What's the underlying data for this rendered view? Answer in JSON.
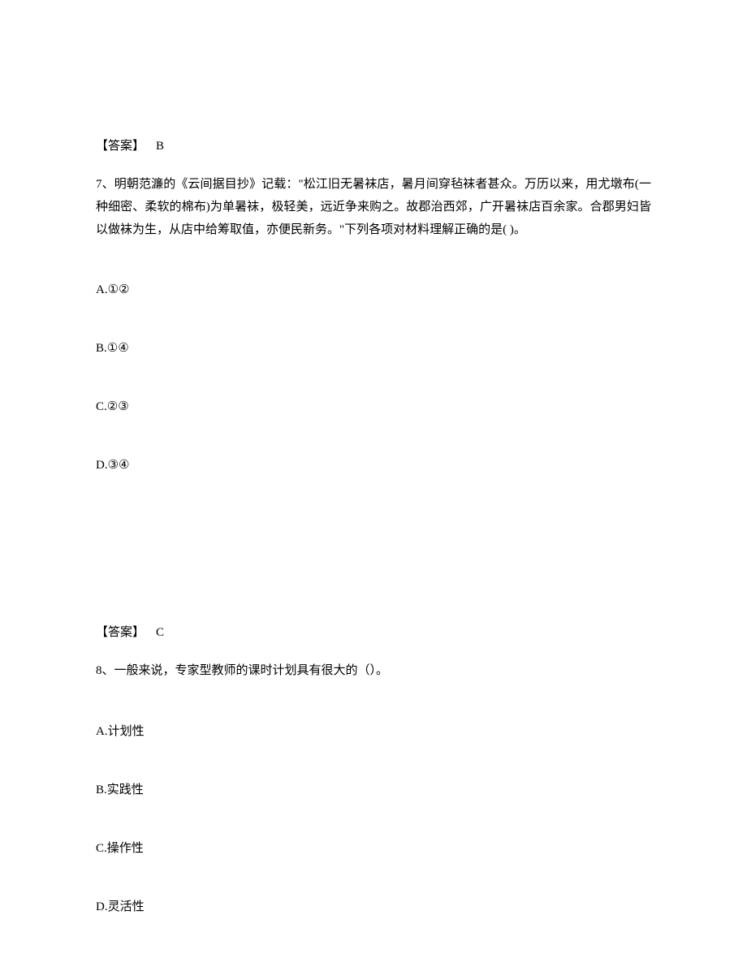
{
  "text_color": "#000000",
  "background_color": "#ffffff",
  "font_family_serif": "SimSun",
  "base_font_size_pt": 11,
  "answer6": {
    "label": "【答案】",
    "letter": "B"
  },
  "q7": {
    "stem": "7、明朝范濂的《云间据目抄》记载：\"松江旧无暑袜店，暑月间穿毡袜者甚众。万历以来，用尤墩布(一种细密、柔软的棉布)为单暑袜，极轻美，远近争来购之。故郡治西郊，广开暑袜店百余家。合郡男妇皆以做袜为生，从店中给筹取值，亦便民新务。\"下列各项对材料理解正确的是(  )。",
    "options": {
      "a": "A.①②",
      "b": "B.①④",
      "c": "C.②③",
      "d": "D.③④"
    }
  },
  "answer7": {
    "label": "【答案】",
    "letter": "C"
  },
  "q8": {
    "stem": "8、一般来说，专家型教师的课时计划具有很大的（）。",
    "options": {
      "a": "A.计划性",
      "b": "B.实践性",
      "c": "C.操作性",
      "d": "D.灵活性"
    }
  }
}
